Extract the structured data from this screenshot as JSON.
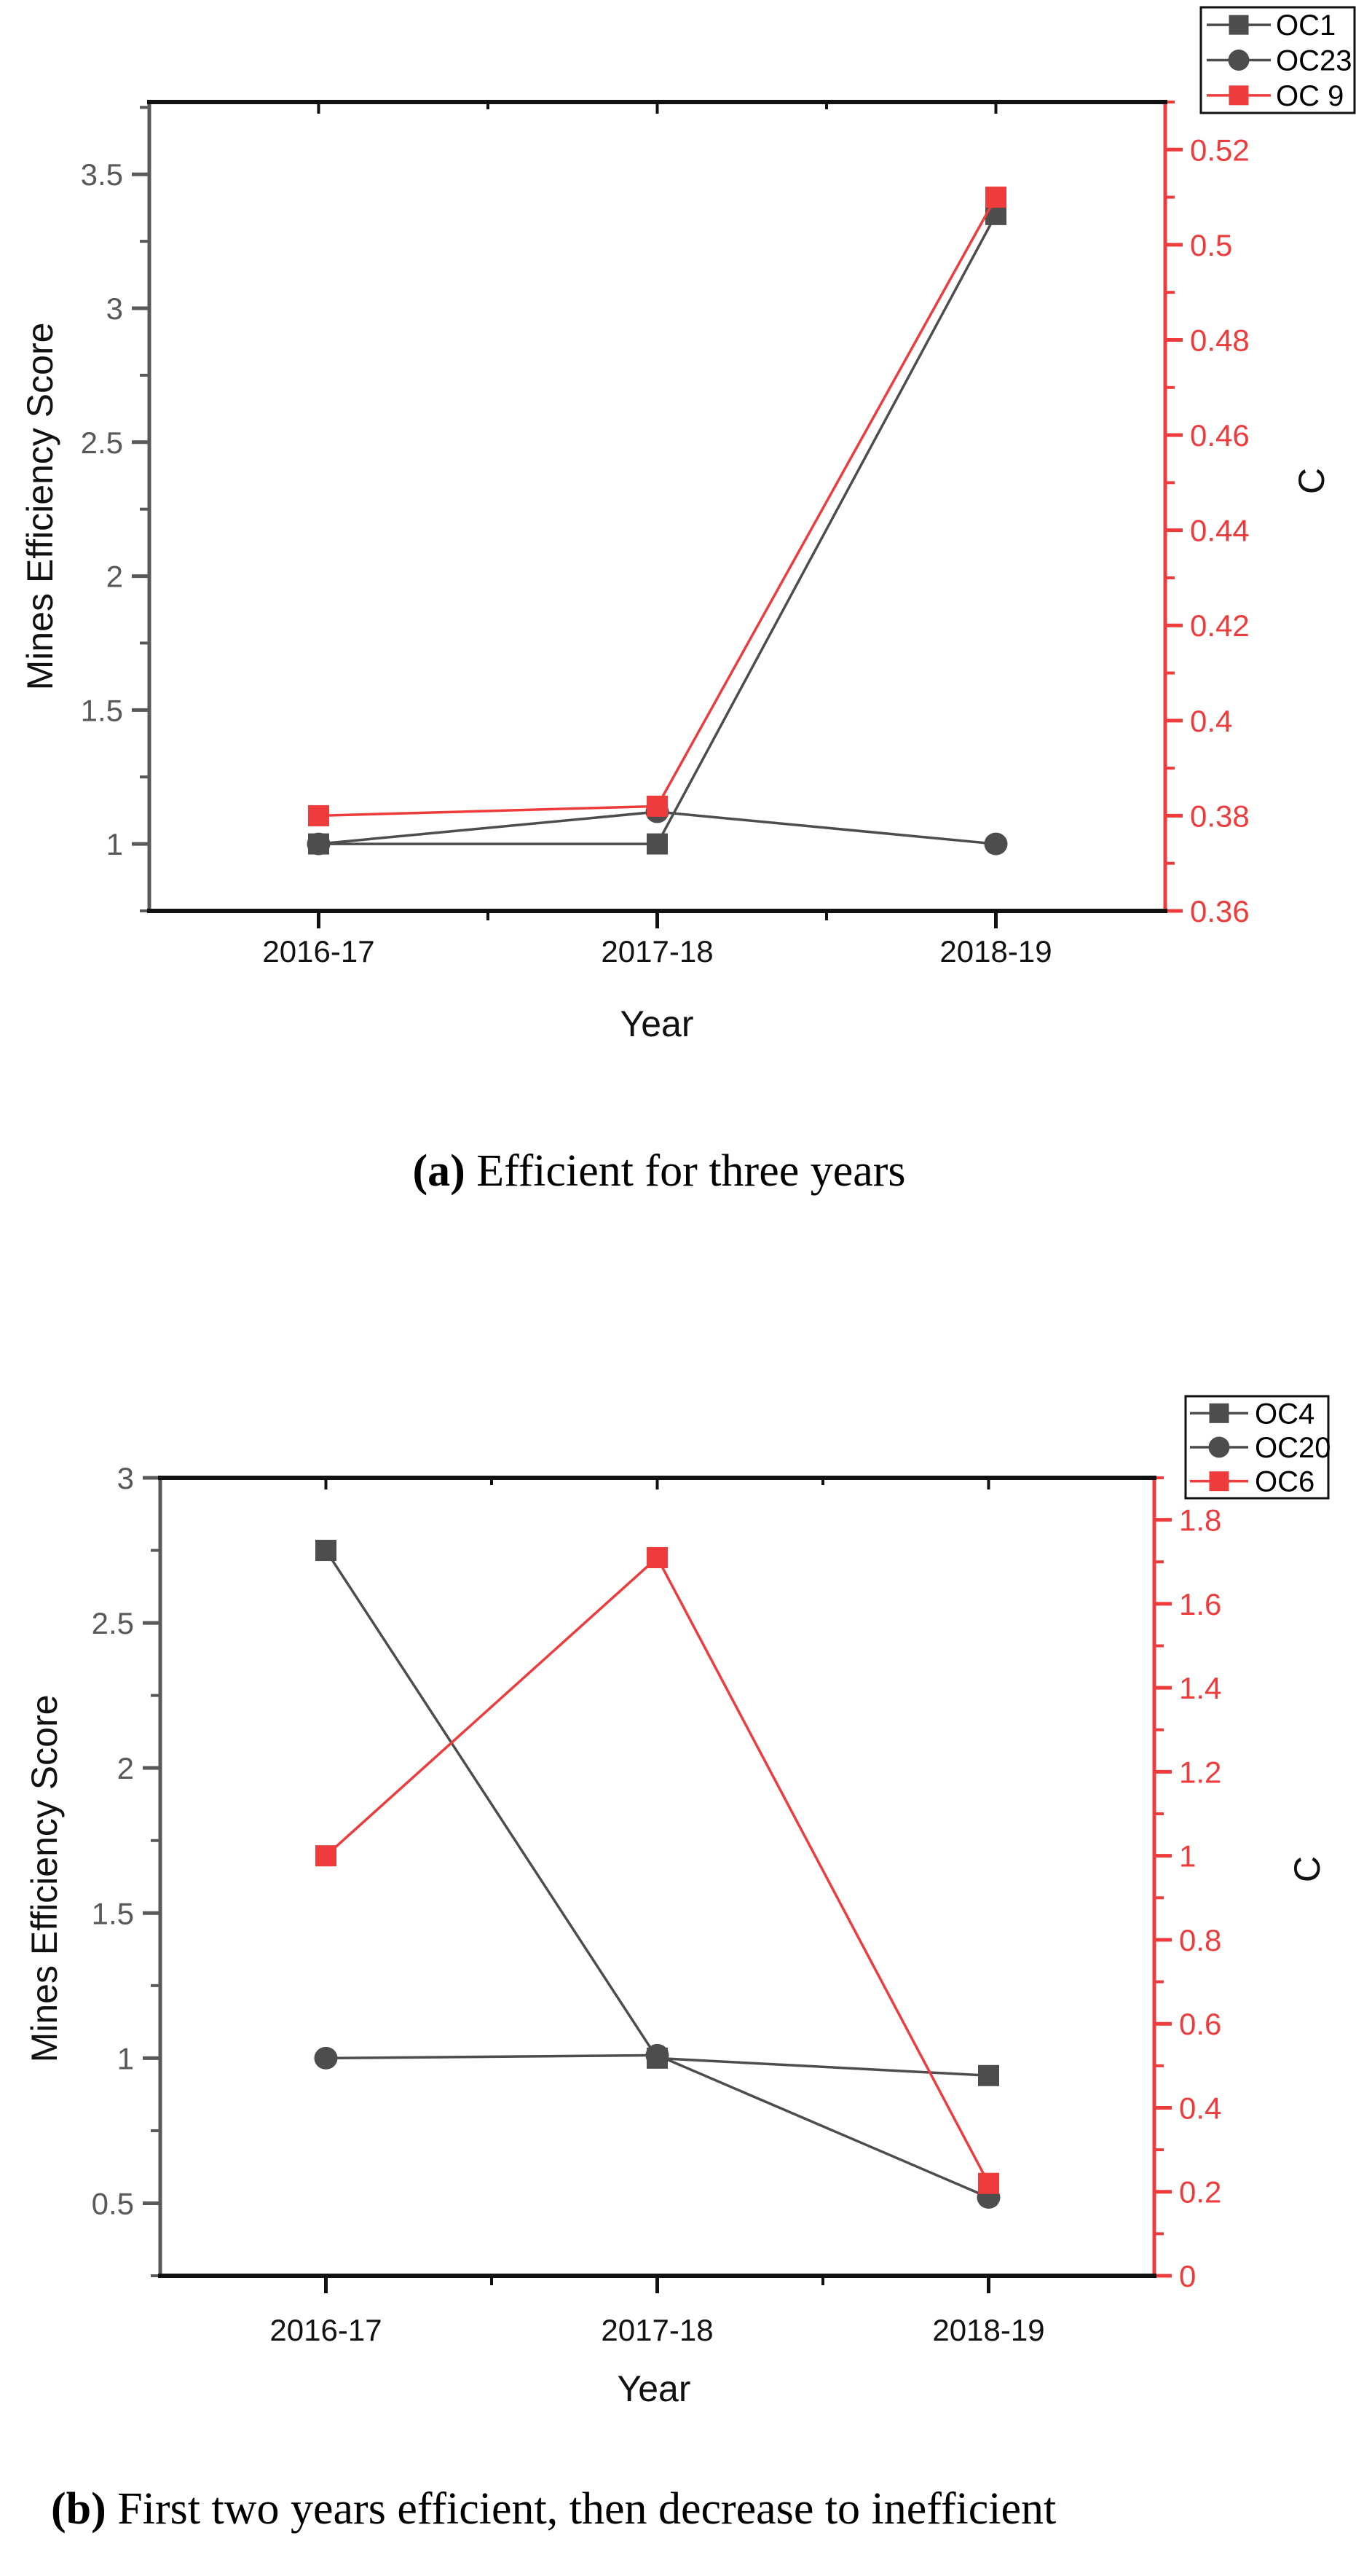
{
  "page": {
    "background": "#ffffff"
  },
  "colors": {
    "series_dark": "#4d4d4d",
    "series_red": "#ee3c3c",
    "left_axis_gray": "#595959",
    "black": "#111111"
  },
  "captions": {
    "a": {
      "open": "(",
      "letter": "a",
      "close": ")",
      "text": " Efficient for three years"
    },
    "b": {
      "open": "(",
      "letter": "b",
      "close": ")",
      "text": " First two years efficient, then decrease to inefficient"
    }
  },
  "chart_data": [
    {
      "id": "a",
      "type": "line",
      "title": "",
      "categories": [
        "2016-17",
        "2017-18",
        "2018-19"
      ],
      "xlabel": "Year",
      "ylabel_left": "Mines Efficiency Score",
      "ylabel_right": "C",
      "ylim_left": [
        0.75,
        3.77
      ],
      "ylim_right": [
        0.36,
        0.53
      ],
      "yticks_left": [
        1,
        1.5,
        2,
        2.5,
        3,
        3.5
      ],
      "yticks_right": [
        0.36,
        0.38,
        0.4,
        0.42,
        0.44,
        0.46,
        0.48,
        0.5,
        0.52
      ],
      "minor_step_left": 0.25,
      "minor_step_right": 0.01,
      "grid": false,
      "legend_position": "top-right-outside",
      "series": [
        {
          "name": "OC1",
          "axis": "left",
          "marker": "square",
          "color": "#4d4d4d",
          "values": [
            1.0,
            1.0,
            3.35
          ]
        },
        {
          "name": "OC23",
          "axis": "left",
          "marker": "circle",
          "color": "#4d4d4d",
          "values": [
            1.0,
            1.12,
            1.0
          ]
        },
        {
          "name": "OC 9",
          "axis": "right",
          "marker": "square",
          "color": "#ee3c3c",
          "values": [
            0.38,
            0.382,
            0.51
          ]
        }
      ]
    },
    {
      "id": "b",
      "type": "line",
      "title": "",
      "categories": [
        "2016-17",
        "2017-18",
        "2018-19"
      ],
      "xlabel": "Year",
      "ylabel_left": "Mines Efficiency Score",
      "ylabel_right": "C",
      "ylim_left": [
        0.25,
        3.0
      ],
      "ylim_right": [
        0,
        1.9
      ],
      "yticks_left": [
        0.5,
        1,
        1.5,
        2,
        2.5,
        3
      ],
      "yticks_right": [
        0,
        0.2,
        0.4,
        0.6,
        0.8,
        1,
        1.2,
        1.4,
        1.6,
        1.8
      ],
      "minor_step_left": 0.25,
      "minor_step_right": 0.1,
      "grid": false,
      "legend_position": "top-right-outside",
      "series": [
        {
          "name": "OC4",
          "axis": "left",
          "marker": "square",
          "color": "#4d4d4d",
          "values": [
            2.75,
            1.0,
            0.94
          ]
        },
        {
          "name": "OC20",
          "axis": "left",
          "marker": "circle",
          "color": "#4d4d4d",
          "values": [
            1.0,
            1.01,
            0.52
          ]
        },
        {
          "name": "OC6",
          "axis": "right",
          "marker": "square",
          "color": "#ee3c3c",
          "values": [
            1.0,
            1.71,
            0.22
          ]
        }
      ]
    }
  ]
}
